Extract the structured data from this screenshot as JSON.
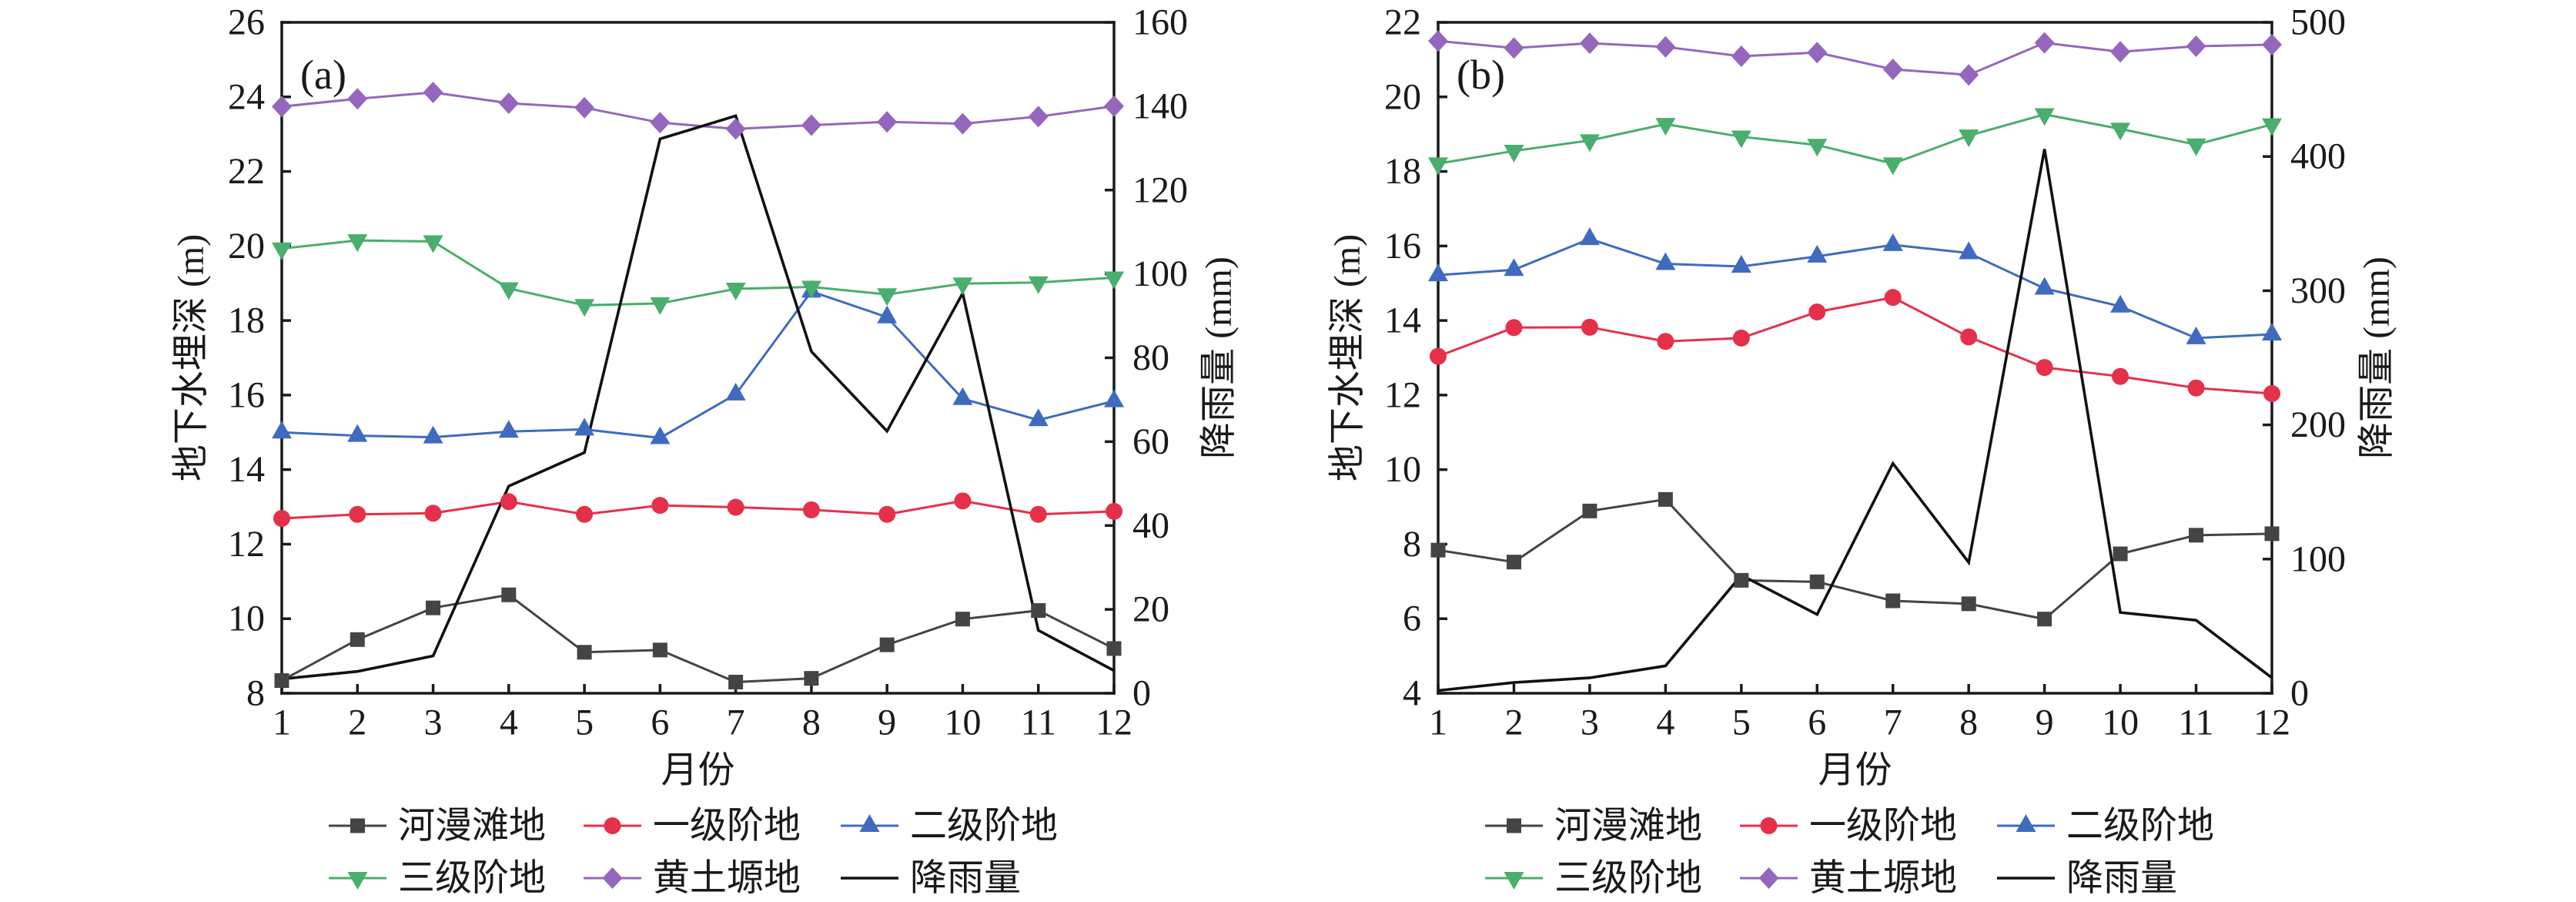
{
  "chart_data": [
    {
      "type": "line",
      "panel_label": "(a)",
      "xlabel": "月份",
      "ylabel": "地下水埋深 (m)",
      "y2label": "降雨量 (mm)",
      "x": [
        1,
        2,
        3,
        4,
        5,
        6,
        7,
        8,
        9,
        10,
        11,
        12
      ],
      "xticks": [
        "1",
        "2",
        "3",
        "4",
        "5",
        "6",
        "7",
        "8",
        "9",
        "10",
        "11",
        "12"
      ],
      "ylim": [
        8,
        26
      ],
      "yticks": [
        8,
        10,
        12,
        14,
        16,
        18,
        20,
        22,
        24,
        26
      ],
      "y2lim": [
        0,
        160
      ],
      "y2ticks": [
        0,
        20,
        40,
        60,
        80,
        100,
        120,
        140,
        160
      ],
      "grid": false,
      "legend": "bottom",
      "series": [
        {
          "name": "河漫滩地",
          "axis": "left",
          "color": "#444444",
          "marker": "square",
          "values": [
            8.34,
            9.44,
            10.29,
            10.64,
            9.1,
            9.16,
            8.3,
            8.4,
            9.3,
            9.99,
            10.22,
            9.2
          ]
        },
        {
          "name": "一级阶地",
          "axis": "left",
          "color": "#e5304a",
          "marker": "circle",
          "values": [
            12.69,
            12.8,
            12.83,
            13.14,
            12.8,
            13.04,
            12.99,
            12.92,
            12.8,
            13.16,
            12.8,
            12.88
          ]
        },
        {
          "name": "二级阶地",
          "axis": "left",
          "color": "#3f6bbf",
          "marker": "triangle-up",
          "values": [
            15.0,
            14.91,
            14.87,
            15.02,
            15.08,
            14.85,
            16.02,
            18.78,
            18.09,
            15.9,
            15.33,
            15.84
          ]
        },
        {
          "name": "三级阶地",
          "axis": "left",
          "color": "#4aae6c",
          "marker": "triangle-down",
          "values": [
            19.93,
            20.15,
            20.12,
            18.86,
            18.41,
            18.46,
            18.85,
            18.9,
            18.7,
            18.99,
            19.02,
            19.15
          ]
        },
        {
          "name": "黄土塬地",
          "axis": "left",
          "color": "#9467bd",
          "marker": "diamond",
          "values": [
            23.74,
            23.95,
            24.12,
            23.83,
            23.71,
            23.31,
            23.14,
            23.24,
            23.33,
            23.28,
            23.47,
            23.75
          ]
        },
        {
          "name": "降雨量",
          "axis": "right",
          "color": "#111111",
          "marker": "none",
          "values": [
            3.4,
            5.2,
            8.9,
            49.4,
            57.4,
            132.2,
            137.7,
            81.5,
            62.5,
            95.4,
            15.0,
            5.4
          ]
        }
      ]
    },
    {
      "type": "line",
      "panel_label": "(b)",
      "xlabel": "月份",
      "ylabel": "地下水埋深 (m)",
      "y2label": "降雨量 (mm)",
      "x": [
        1,
        2,
        3,
        4,
        5,
        6,
        7,
        8,
        9,
        10,
        11,
        12
      ],
      "xticks": [
        "1",
        "2",
        "3",
        "4",
        "5",
        "6",
        "7",
        "8",
        "9",
        "10",
        "11",
        "12"
      ],
      "ylim": [
        4,
        22
      ],
      "yticks": [
        4,
        6,
        8,
        10,
        12,
        14,
        16,
        18,
        20,
        22
      ],
      "y2lim": [
        0,
        500
      ],
      "y2ticks": [
        0,
        100,
        200,
        300,
        400,
        500
      ],
      "grid": false,
      "legend": "bottom",
      "series": [
        {
          "name": "河漫滩地",
          "axis": "left",
          "color": "#444444",
          "marker": "square",
          "values": [
            7.84,
            7.52,
            8.89,
            9.2,
            7.03,
            6.99,
            6.48,
            6.4,
            5.99,
            7.74,
            8.24,
            8.28
          ]
        },
        {
          "name": "一级阶地",
          "axis": "left",
          "color": "#e5304a",
          "marker": "circle",
          "values": [
            13.04,
            13.81,
            13.82,
            13.44,
            13.53,
            14.23,
            14.62,
            13.56,
            12.74,
            12.5,
            12.19,
            12.04
          ]
        },
        {
          "name": "二级阶地",
          "axis": "left",
          "color": "#3f6bbf",
          "marker": "triangle-up",
          "values": [
            15.22,
            15.36,
            16.19,
            15.52,
            15.45,
            15.72,
            16.03,
            15.81,
            14.86,
            14.38,
            13.53,
            13.63
          ]
        },
        {
          "name": "三级阶地",
          "axis": "left",
          "color": "#4aae6c",
          "marker": "triangle-down",
          "values": [
            18.21,
            18.55,
            18.83,
            19.27,
            18.93,
            18.71,
            18.21,
            18.96,
            19.53,
            19.14,
            18.72,
            19.26
          ]
        },
        {
          "name": "黄土塬地",
          "axis": "left",
          "color": "#9467bd",
          "marker": "diamond",
          "values": [
            21.5,
            21.31,
            21.44,
            21.34,
            21.09,
            21.19,
            20.74,
            20.59,
            21.45,
            21.21,
            21.36,
            21.4
          ]
        },
        {
          "name": "降雨量",
          "axis": "right",
          "color": "#111111",
          "marker": "none",
          "values": [
            2.0,
            8.0,
            11.5,
            20.4,
            88.0,
            58.7,
            171.3,
            97.5,
            405.5,
            60.2,
            54.4,
            11.5
          ]
        }
      ]
    }
  ]
}
